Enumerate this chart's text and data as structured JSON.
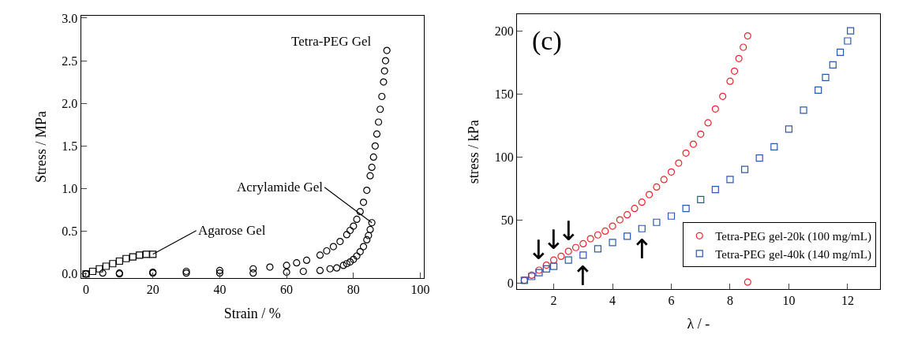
{
  "chart_data": [
    {
      "type": "scatter",
      "xlabel": "Strain / %",
      "ylabel": "Stress / MPa",
      "xlim": [
        -1.5,
        101
      ],
      "ylim": [
        -0.05,
        3.03
      ],
      "xticks": [
        0,
        20,
        40,
        60,
        80,
        100
      ],
      "yticks": [
        {
          "value": 0,
          "label": "0.0"
        },
        0.5,
        {
          "value": 1,
          "label": "1.0"
        },
        1.5,
        {
          "value": 2,
          "label": "2.0"
        },
        2.5,
        {
          "value": 3,
          "label": "3.0"
        }
      ],
      "legend": false,
      "series": [
        {
          "color": "#000000",
          "marker": "circle",
          "x": [
            0,
            5,
            10,
            20,
            30,
            40,
            50,
            55,
            60,
            63,
            66,
            70,
            72,
            74,
            76,
            78,
            79,
            80,
            81,
            82,
            83,
            84,
            85,
            85.5,
            86,
            86.5,
            87,
            87.5,
            88,
            88.5,
            89,
            89.3,
            89.6,
            90
          ],
          "values": [
            0,
            0.01,
            0.01,
            0.02,
            0.03,
            0.04,
            0.06,
            0.08,
            0.1,
            0.13,
            0.16,
            0.22,
            0.27,
            0.32,
            0.38,
            0.46,
            0.51,
            0.56,
            0.64,
            0.73,
            0.84,
            0.98,
            1.15,
            1.25,
            1.37,
            1.5,
            1.64,
            1.78,
            1.93,
            2.08,
            2.25,
            2.38,
            2.5,
            2.62
          ]
        },
        {
          "color": "#000000",
          "marker": "circle",
          "x": [
            0,
            10,
            20,
            30,
            40,
            50,
            60,
            65,
            70,
            73,
            75,
            77,
            78,
            79,
            80,
            81,
            82,
            83,
            84,
            84.5,
            85,
            85.5
          ],
          "values": [
            0,
            0,
            0.01,
            0.01,
            0.01,
            0.01,
            0.02,
            0.03,
            0.04,
            0.06,
            0.07,
            0.1,
            0.12,
            0.14,
            0.17,
            0.21,
            0.26,
            0.32,
            0.4,
            0.45,
            0.52,
            0.6
          ]
        },
        {
          "color": "#000000",
          "marker": "square",
          "x": [
            0,
            2,
            4,
            6,
            8,
            10,
            12,
            14,
            16,
            18,
            20
          ],
          "values": [
            0,
            0.03,
            0.06,
            0.09,
            0.12,
            0.15,
            0.18,
            0.2,
            0.22,
            0.23,
            0.23
          ]
        }
      ],
      "annotations": [
        "Tetra-PEG Gel",
        {
          "text": "Acrylamide Gel",
          "x": 85.5,
          "y": 0.6
        },
        {
          "text": "Agarose Gel",
          "x": 20,
          "y": 0.23
        }
      ]
    },
    {
      "type": "scatter",
      "xlabel": "λ / -",
      "ylabel": "stress / kPa",
      "xlim": [
        0.75,
        13.1
      ],
      "ylim": [
        -5,
        213
      ],
      "xticks": [
        2,
        4,
        6,
        8,
        10,
        12
      ],
      "yticks": [
        0,
        50,
        100,
        150,
        200
      ],
      "legend": "bottom right",
      "series": [
        {
          "name": "Tetra-PEG gel-20k (100 mg/mL)",
          "color": "#e8262b",
          "marker": "circle",
          "x": [
            1.0,
            1.25,
            1.5,
            1.75,
            2.0,
            2.25,
            2.5,
            2.75,
            3.0,
            3.25,
            3.5,
            3.75,
            4.0,
            4.25,
            4.5,
            4.75,
            5.0,
            5.25,
            5.5,
            5.75,
            6.0,
            6.25,
            6.5,
            6.75,
            7.0,
            7.25,
            7.5,
            7.75,
            8.0,
            8.15,
            8.3,
            8.45,
            8.6,
            8.6
          ],
          "values": [
            2,
            6,
            10,
            14,
            18,
            21,
            25,
            28,
            31,
            35,
            38,
            41,
            45,
            50,
            54,
            59,
            64,
            70,
            76,
            82,
            88,
            95,
            103,
            110,
            118,
            127,
            138,
            148,
            160,
            168,
            178,
            187,
            196,
            0.5
          ]
        },
        {
          "name": "Tetra-PEG gel-40k (140 mg/mL)",
          "color": "#2b57b0",
          "marker": "square",
          "x": [
            1.0,
            1.25,
            1.5,
            1.75,
            2.0,
            2.5,
            3.0,
            3.5,
            4.0,
            4.5,
            5.0,
            5.5,
            6.0,
            6.5,
            7.0,
            7.5,
            8.0,
            8.5,
            9.0,
            9.5,
            10.0,
            10.5,
            11.0,
            11.25,
            11.5,
            11.75,
            12.0,
            12.1
          ],
          "values": [
            2,
            5,
            8,
            11,
            13,
            18,
            22,
            27,
            32,
            37,
            43,
            48,
            53,
            59,
            66,
            74,
            82,
            90,
            99,
            108,
            122,
            137,
            153,
            163,
            173,
            183,
            192,
            200
          ]
        }
      ],
      "annotations": [
        "(c)",
        {
          "text": "↓",
          "x": 1.5,
          "y": 10
        },
        {
          "text": "↓",
          "x": 2.0,
          "y": 18
        },
        {
          "text": "↓",
          "x": 2.5,
          "y": 25
        },
        {
          "text": "↑",
          "x": 3.0,
          "y": 22
        },
        {
          "text": "↑",
          "x": 5.0,
          "y": 43
        }
      ]
    }
  ]
}
